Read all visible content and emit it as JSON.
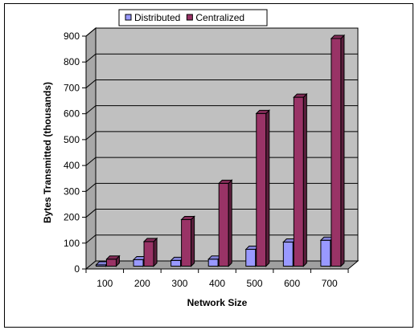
{
  "chart_data": {
    "type": "bar",
    "style": "3d-clustered-column",
    "categories": [
      "100",
      "200",
      "300",
      "400",
      "500",
      "600",
      "700"
    ],
    "series": [
      {
        "name": "Distributed",
        "color": "#9999ff",
        "values": [
          5,
          25,
          22,
          27,
          65,
          93,
          100
        ]
      },
      {
        "name": "Centralized",
        "color": "#993366",
        "values": [
          27,
          95,
          180,
          320,
          590,
          653,
          880
        ]
      }
    ],
    "xlabel": "Network Size",
    "ylabel": "Bytes Transmitted (thousands)",
    "ylim": [
      0,
      900
    ],
    "yticks": [
      0,
      100,
      200,
      300,
      400,
      500,
      600,
      700,
      800,
      900
    ],
    "grid": true,
    "wall_color": "#c0c0c0",
    "legend_position": "top"
  }
}
